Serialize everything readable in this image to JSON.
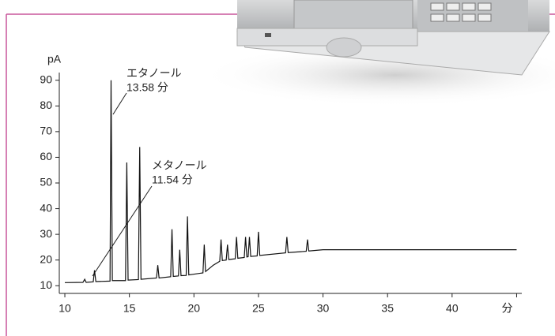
{
  "chart_data": {
    "type": "line",
    "y_label": "pA",
    "annotations": [
      {
        "name": "エタノール",
        "time": "13.58 分"
      },
      {
        "name": "メタノール",
        "time": "11.54 分"
      }
    ],
    "xlim": [
      9.57,
      45.4
    ],
    "ylim": [
      7,
      93
    ],
    "xticks": [
      10,
      15,
      20,
      25,
      30,
      35,
      40,
      {
        "value": 45,
        "label": "分"
      }
    ],
    "yticks": [
      10,
      20,
      30,
      40,
      50,
      60,
      70,
      80,
      90
    ],
    "series": [
      {
        "color": "#111111",
        "x": [
          10,
          11.4,
          11.54,
          11.65,
          12.2,
          12.3,
          12.4,
          13.5,
          13.58,
          13.68,
          14.7,
          14.8,
          14.9,
          15.7,
          15.8,
          15.9,
          17.1,
          17.2,
          17.3,
          18.2,
          18.3,
          18.4,
          18.8,
          18.9,
          19.0,
          19.4,
          19.5,
          19.6,
          20.7,
          20.8,
          20.9,
          21.5,
          22.0,
          22.1,
          22.2,
          22.5,
          22.6,
          22.7,
          23.2,
          23.3,
          23.4,
          23.9,
          24.0,
          24.1,
          24.2,
          24.3,
          24.4,
          24.9,
          25.0,
          25.1,
          27.1,
          27.2,
          27.3,
          28.7,
          28.8,
          28.9,
          30,
          35,
          40,
          45
        ],
        "values": [
          11.2,
          11.3,
          12.5,
          11.3,
          11.5,
          16,
          11.6,
          11.8,
          90,
          12,
          12,
          58,
          12.2,
          12.4,
          64,
          12.5,
          13,
          18,
          13,
          13.5,
          32,
          13.6,
          13.8,
          24,
          13.9,
          14,
          37,
          14.2,
          15,
          26,
          15.5,
          18,
          19.5,
          28,
          19.8,
          20,
          26,
          20.2,
          20.5,
          29,
          20.7,
          21,
          29,
          21.2,
          21.3,
          29,
          21.4,
          21.6,
          31,
          21.8,
          22.8,
          29,
          22.9,
          23.4,
          28,
          23.5,
          24,
          24,
          24,
          24
        ]
      }
    ]
  }
}
